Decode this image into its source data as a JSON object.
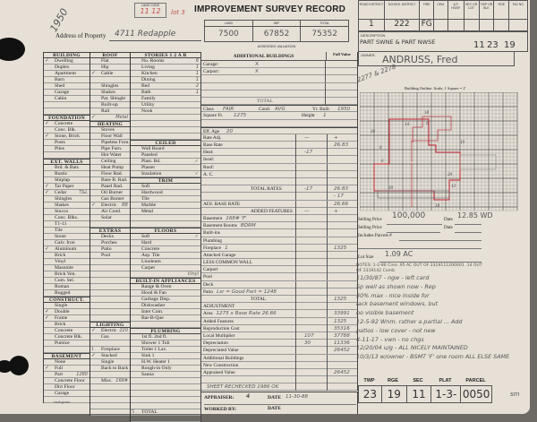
{
  "header": {
    "land_code_label": "LAND CODE",
    "land_code": "11 12",
    "lot_note": "lot 3",
    "title": "IMPROVEMENT SURVEY RECORD",
    "year_note": "1950",
    "address_label": "Address of Property",
    "address": "4711 Redapple",
    "valuation_labels": [
      "LAND",
      "IMP.",
      "TOTAL"
    ],
    "valuation_values": [
      "7500",
      "67852",
      "75352"
    ],
    "valuation_caption": "ASSESSED VALUATION"
  },
  "left_columns": [
    [
      {
        "t": "BUILDING",
        "h": 1
      },
      {
        "t": "Dwelling",
        "m": "✓"
      },
      {
        "t": "Duplex"
      },
      {
        "t": "Apartment"
      },
      {
        "t": "Barn"
      },
      {
        "t": "Shed"
      },
      {
        "t": "Garage"
      },
      {
        "t": "Cabin"
      },
      {
        "t": ""
      },
      {
        "t": ""
      },
      {
        "t": "FOUNDATION",
        "h": 1
      },
      {
        "t": "Concrete",
        "m": "✓"
      },
      {
        "t": "Conc. Blk."
      },
      {
        "t": "Stone, Brick",
        "m": "✓"
      },
      {
        "t": "Posts"
      },
      {
        "t": "Piles"
      },
      {
        "t": ""
      },
      {
        "t": "EXT. WALLS",
        "h": 1
      },
      {
        "t": "Brd. & Bats"
      },
      {
        "t": "Rustic"
      },
      {
        "t": "Shiplap"
      },
      {
        "t": "Tar Paper",
        "m": "✓"
      },
      {
        "t": "Cedar",
        "m": "✓",
        "v": "T&L"
      },
      {
        "t": "Shingles"
      },
      {
        "t": "Shakes"
      },
      {
        "t": "Stucco"
      },
      {
        "t": "Conc. Blks."
      },
      {
        "t": "T1-11"
      },
      {
        "t": "Tile"
      },
      {
        "t": "Stone"
      },
      {
        "t": "Galv. Iron"
      },
      {
        "t": "Aluminum",
        "m": "✓"
      },
      {
        "t": "Brick"
      },
      {
        "t": "Vinyl"
      },
      {
        "t": "Masonite"
      },
      {
        "t": "Brick Ven."
      },
      {
        "t": "Com. Sel."
      },
      {
        "t": "Roman"
      },
      {
        "t": "Rugged"
      },
      {
        "t": "CONSTRUCT.",
        "h": 1
      },
      {
        "t": "Single"
      },
      {
        "t": "Double",
        "m": "✓"
      },
      {
        "t": "Frame",
        "m": "✓"
      },
      {
        "t": "Brick"
      },
      {
        "t": "Concrete"
      },
      {
        "t": "Concrete Blk."
      },
      {
        "t": "Pumice"
      },
      {
        "t": ""
      },
      {
        "t": "BASEMENT",
        "h": 1
      },
      {
        "t": "None"
      },
      {
        "t": "Full",
        "m": "✓"
      },
      {
        "t": "Part",
        "v": "1280"
      },
      {
        "t": "Concrete Floor"
      },
      {
        "t": "Dirt Floor"
      },
      {
        "t": "Garage"
      },
      {
        "t": ""
      }
    ],
    [
      {
        "t": "ROOF",
        "h": 1
      },
      {
        "t": "Flat"
      },
      {
        "t": "Hip"
      },
      {
        "t": "Gable",
        "m": "✓"
      },
      {
        "t": ""
      },
      {
        "t": "Shingles"
      },
      {
        "t": "Shakes"
      },
      {
        "t": "Pat. Shingle"
      },
      {
        "t": "Built-up"
      },
      {
        "t": "Rail"
      },
      {
        "t": "",
        "m": "✓",
        "v": "Metal"
      },
      {
        "t": "HEATING",
        "h": 1
      },
      {
        "t": "Stoves"
      },
      {
        "t": "Floor Wall"
      },
      {
        "t": "Pipeless Furn."
      },
      {
        "t": "Pipe Furn."
      },
      {
        "t": "Hot Water"
      },
      {
        "t": "Ceiling"
      },
      {
        "t": "Heat Pump"
      },
      {
        "t": "Floor Rad."
      },
      {
        "t": "Base B. Rad."
      },
      {
        "t": "Panel Rad."
      },
      {
        "t": "Oil Burner"
      },
      {
        "t": "Gas Burner"
      },
      {
        "t": "Electric",
        "m": "✓",
        "v": "BB"
      },
      {
        "t": "Air Cond."
      },
      {
        "t": "Solar"
      },
      {
        "t": ""
      },
      {
        "t": "EXTRAS",
        "h": 1
      },
      {
        "t": "Decks"
      },
      {
        "t": "Porches"
      },
      {
        "t": "Patio"
      },
      {
        "t": "Pool"
      },
      {
        "t": ""
      },
      {
        "t": ""
      },
      {
        "t": ""
      },
      {
        "t": ""
      },
      {
        "t": ""
      },
      {
        "t": ""
      },
      {
        "t": ""
      },
      {
        "t": ""
      },
      {
        "t": ""
      },
      {
        "t": ""
      },
      {
        "t": "LIGHTING",
        "h": 1
      },
      {
        "t": "Electric",
        "m": "✓",
        "v": "220"
      },
      {
        "t": "Gas"
      },
      {
        "t": ""
      },
      {
        "t": "Fireplace",
        "m": "1"
      },
      {
        "t": "Stacked",
        "m": "✓"
      },
      {
        "t": "Single"
      },
      {
        "t": "Back to Back"
      },
      {
        "t": ""
      },
      {
        "t": "Misc.",
        "v": "168#"
      },
      {
        "t": ""
      },
      {
        "t": ""
      },
      {
        "t": ""
      },
      {
        "t": ""
      },
      {
        "t": ""
      }
    ],
    [
      {
        "t": "STORIES   1  2  A  B",
        "h": 1
      },
      {
        "t": "No. Rooms",
        "v": "6"
      },
      {
        "t": "Living",
        "v": "1"
      },
      {
        "t": "Kitchen",
        "v": "1"
      },
      {
        "t": "Dining",
        "v": "1"
      },
      {
        "t": "Bed",
        "v": "2"
      },
      {
        "t": "Bath",
        "v": "1"
      },
      {
        "t": "Family"
      },
      {
        "t": "Utility"
      },
      {
        "t": "Nook"
      },
      {
        "t": ""
      },
      {
        "t": ""
      },
      {
        "t": ""
      },
      {
        "t": ""
      },
      {
        "t": "CEILED",
        "h": 1
      },
      {
        "t": "Wall Board"
      },
      {
        "t": "Paneled"
      },
      {
        "t": "Plast. Bd.",
        "v": "✓"
      },
      {
        "t": "Plaster"
      },
      {
        "t": "Insulation",
        "v": "✓"
      },
      {
        "t": "TRIM",
        "h": 1
      },
      {
        "t": "Soft"
      },
      {
        "t": "Hardwood"
      },
      {
        "t": "Tile"
      },
      {
        "t": "Marble"
      },
      {
        "t": "Metal"
      },
      {
        "t": ""
      },
      {
        "t": ""
      },
      {
        "t": "FLOORS",
        "h": 1
      },
      {
        "t": "Soft",
        "v": "✓"
      },
      {
        "t": "Hard"
      },
      {
        "t": "Concrete"
      },
      {
        "t": "Asp. Tile"
      },
      {
        "t": "Linoleum"
      },
      {
        "t": "Carpet"
      },
      {
        "t": "",
        "v": "Vinyl"
      },
      {
        "t": "BUILT-IN APPLIANCES",
        "h": 1
      },
      {
        "t": "Range & Oven"
      },
      {
        "t": "Hood & Fan"
      },
      {
        "t": "Garbage Disp."
      },
      {
        "t": "Dishwasher"
      },
      {
        "t": "Inter Com."
      },
      {
        "t": "Bar-B-Que"
      },
      {
        "t": ""
      },
      {
        "t": "PLUMBING",
        "h": 1
      },
      {
        "t": "1st fl.            2nd fl."
      },
      {
        "t": "Shower  1       Tub"
      },
      {
        "t": "Toilet  1       Lav."
      },
      {
        "t": "Sink  1"
      },
      {
        "t": "H.W. Heater  1"
      },
      {
        "t": "Rough-in Only"
      },
      {
        "t": "Sauna"
      },
      {
        "t": ""
      },
      {
        "t": ""
      },
      {
        "t": ""
      },
      {
        "t": ""
      },
      {
        "t": ""
      },
      {
        "t": "TOTAL",
        "m": "5"
      },
      {
        "t": ""
      }
    ]
  ],
  "additional": {
    "title": "ADDITIONAL BUILDINGS",
    "full_value": "Full Value",
    "rows": [
      {
        "t": "Garage:",
        "v": "X"
      },
      {
        "t": "Carport:",
        "v": "X"
      },
      {
        "t": ""
      },
      {
        "t": ""
      },
      {
        "t": ""
      },
      {
        "t": "",
        "c": "TOTAL"
      }
    ]
  },
  "details": {
    "class_label": "Class",
    "class": "FAIR",
    "cond_label": "Cond.",
    "cond": "AVG",
    "yr_label": "Yr. Built",
    "yr": "1950",
    "sqft_label": "Square Ft.",
    "sqft": "1275",
    "height_label": "Height",
    "height": "1",
    "eff_label": "Eff. Age",
    "eff": "20"
  },
  "rates": [
    {
      "t": "Rate Adj.",
      "a": "—",
      "b": "+"
    },
    {
      "t": "Base Rate",
      "b": "26.83"
    },
    {
      "t": "Heat:",
      "a": "-17"
    },
    {
      "t": "Insul:"
    },
    {
      "t": "Roof:"
    },
    {
      "t": "A. C."
    },
    {
      "t": ""
    },
    {
      "t": "TOTAL RATES",
      "a": "-17",
      "b": "26.83",
      "c": 1
    },
    {
      "t": "",
      "b": "- 17"
    },
    {
      "t": "ADJ. BASE RATE",
      "b": "26.66"
    },
    {
      "t": "ADDED FEATURES",
      "a": "—",
      "b": "+",
      "c": 1
    },
    {
      "t": "Basement",
      "x": "168# 'F'"
    },
    {
      "t": "Basement Rooms",
      "x": "BDRM"
    },
    {
      "t": "Built-ins"
    },
    {
      "t": "Plumbing"
    },
    {
      "t": "Fireplace",
      "x": "1",
      "b": "1325"
    },
    {
      "t": "Attached Garage"
    },
    {
      "t": "LESS COMMON WALL"
    },
    {
      "t": "Carport"
    },
    {
      "t": "Pool"
    },
    {
      "t": "Deck"
    },
    {
      "t": "Patio",
      "x": "Lsr = Good  Part = 1248"
    },
    {
      "t": "TOTAL",
      "b": "1325",
      "c": 1
    },
    {
      "t": "ADJUSTMENT"
    },
    {
      "t": "Area",
      "x": "1275 x Base Rate 26.66",
      "b": "33991"
    },
    {
      "t": "Added Features",
      "b": "1325"
    },
    {
      "t": "Reproduction Cost",
      "b": "35316"
    },
    {
      "t": "Local Multiplier",
      "a": "107",
      "b": "37788"
    },
    {
      "t": "Depreciation",
      "a": "30",
      "b": "11336"
    },
    {
      "t": "Depreciated Value",
      "b": "26452"
    },
    {
      "t": "Additional Buildings"
    },
    {
      "t": "New Construction"
    },
    {
      "t": "Appraised Value",
      "b": "26452"
    },
    {
      "t": ""
    },
    {
      "t": "",
      "x": "SHEET RECHECKED 1986 OK"
    }
  ],
  "appraiser": {
    "appraiser_label": "APPRAISER:",
    "appraiser": "4",
    "date_label": "DATE",
    "date": "11-30-88",
    "worked_label": "WORKED BY:",
    "date2_label": "DATE"
  },
  "codes": {
    "labels": [
      "ROAD DISTRICT",
      "SCHOOL DISTRICT",
      "FIRE",
      "CEM.",
      "A.P. HOSP.",
      "SEC OR LOT",
      "TWP OR BLK",
      "RGE",
      "TAX NO."
    ],
    "values": [
      "1",
      "222",
      "FG",
      "",
      "",
      "",
      "",
      "",
      ""
    ],
    "description_label": "DESCRIPTION",
    "description": "PART SWNE & PART NWSE",
    "sec": "11",
    "twp": "23",
    "rge": "19",
    "owner_label": "OWNER:",
    "owner": "ANDRUSS, Fred",
    "owner_note": "2277 & 2278",
    "sketch_caption": "Building Outline.  Scale, 1 Square = 2'"
  },
  "sketch_labels": [
    "18",
    "14",
    "6",
    "19",
    "8",
    "6",
    "20",
    "36",
    "30",
    "18",
    "13"
  ],
  "sale": {
    "price_label": "Selling Price",
    "price": "100,000",
    "date_label": "Date",
    "date": "12.85 WD",
    "price2_label": "Selling Price",
    "date2_label": "Date",
    "parcels_label": "Includes Parcels #",
    "lot_label": "Lot Size",
    "lot": "1.09 AC"
  },
  "notes": [
    "NOTES: 1-2-86 Crea .95 AC OUT OF 2319111200001  .14 OUT",
    "OF 2319142 Comb",
    "11/30/87 - ngw - left card",
    "Sp well as shown now - Rep",
    "30% max - nice inside for",
    "lack basement windows, but",
    "no visible basement",
    "12-5-92 Wnm. rather a partial ... Add",
    "patios - low cover - not new",
    "4-11-17 - vwn - no chgs",
    "12/20/04 u/g - ALL NICELY MAINTAINED",
    "10/3/13 w/owner - BSMT 'F' one room  ALL ELSE SAME"
  ],
  "footer": {
    "labels": [
      "TWP",
      "RGE",
      "SEC",
      "PLAT",
      "PARCEL"
    ],
    "values": [
      "23",
      "19",
      "11",
      "1-3-",
      "0050"
    ],
    "initials": "sm",
    "printer": "endogram"
  }
}
